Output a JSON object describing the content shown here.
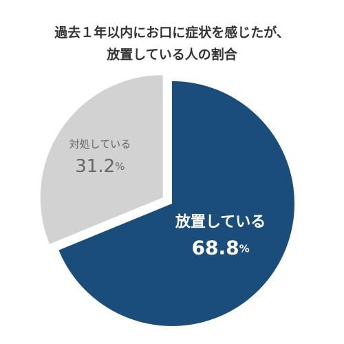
{
  "chart_data": {
    "type": "pie",
    "title": [
      "過去１年以内にお口に症状を感じたが、",
      "放置している人の割合"
    ],
    "categories": [
      "放置している",
      "対処している"
    ],
    "values": [
      68.8,
      31.2
    ],
    "value_labels": [
      "68.8%",
      "31.2%"
    ],
    "colors": [
      "#1b4d7a",
      "#d2d2d2"
    ],
    "label_colors": [
      "#ffffff",
      "#666666"
    ]
  }
}
